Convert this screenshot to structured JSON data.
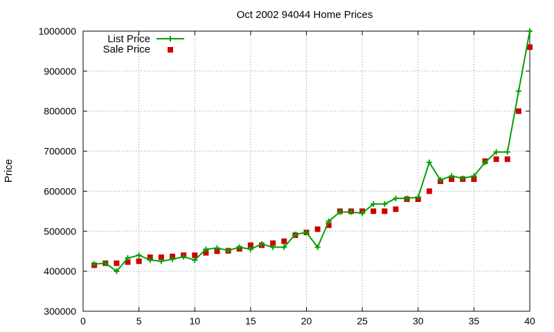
{
  "chart_data": {
    "type": "line",
    "title": "Oct 2002 94044 Home Prices",
    "xlabel": "",
    "ylabel": "Price",
    "xlim": [
      0,
      40
    ],
    "ylim": [
      300000,
      1000000
    ],
    "grid": true,
    "legend_position": "top-left",
    "x_ticks": [
      "0",
      "5",
      "10",
      "15",
      "20",
      "25",
      "30",
      "35",
      "40"
    ],
    "y_ticks": [
      "300000",
      "400000",
      "500000",
      "600000",
      "700000",
      "800000",
      "900000",
      "1000000"
    ],
    "x": [
      1,
      2,
      3,
      4,
      5,
      6,
      7,
      8,
      9,
      10,
      11,
      12,
      13,
      14,
      15,
      16,
      17,
      18,
      19,
      20,
      21,
      22,
      23,
      24,
      25,
      26,
      27,
      28,
      29,
      30,
      31,
      32,
      33,
      34,
      35,
      36,
      37,
      38,
      39,
      40
    ],
    "series": [
      {
        "name": "List Price",
        "style": "line-plus",
        "color": "#00a000",
        "values": [
          418000,
          420000,
          400000,
          433000,
          440000,
          428000,
          425000,
          430000,
          436000,
          428000,
          455000,
          458000,
          452000,
          460000,
          455000,
          468000,
          460000,
          460000,
          492000,
          497000,
          460000,
          525000,
          548000,
          548000,
          545000,
          568000,
          568000,
          582000,
          582000,
          585000,
          672000,
          628000,
          638000,
          632000,
          638000,
          672000,
          698000,
          698000,
          850000,
          1000000
        ]
      },
      {
        "name": "Sale Price",
        "style": "square-marker",
        "color": "#cc0000",
        "values": [
          415000,
          420000,
          420000,
          423000,
          425000,
          435000,
          435000,
          437000,
          440000,
          440000,
          446000,
          450000,
          451000,
          456000,
          465000,
          465000,
          470000,
          475000,
          490000,
          497000,
          505000,
          515000,
          550000,
          550000,
          550000,
          550000,
          550000,
          555000,
          580000,
          580000,
          600000,
          625000,
          630000,
          630000,
          630000,
          675000,
          680000,
          680000,
          800000,
          960000
        ]
      }
    ]
  }
}
